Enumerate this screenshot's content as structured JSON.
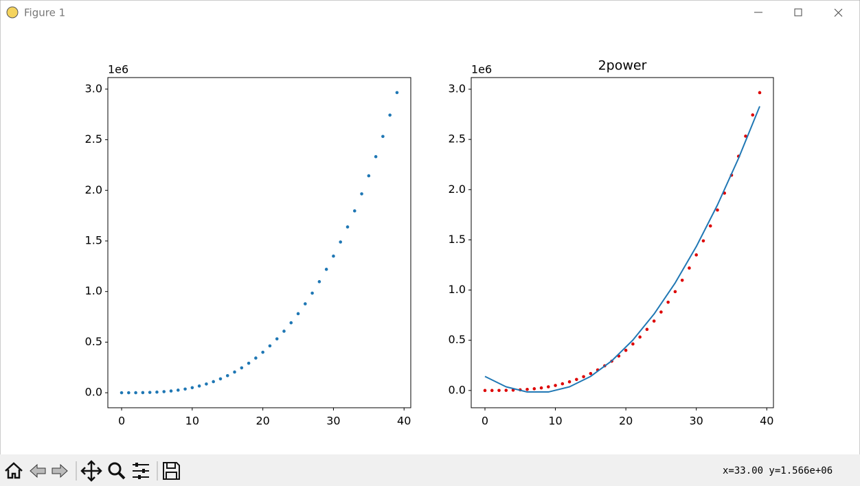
{
  "window": {
    "title": "Figure 1"
  },
  "status": "x=33.00 y=1.566e+06",
  "chart_data": [
    {
      "type": "scatter",
      "x": [
        0,
        1,
        2,
        3,
        4,
        5,
        6,
        7,
        8,
        9,
        10,
        11,
        12,
        13,
        14,
        15,
        16,
        17,
        18,
        19,
        20,
        21,
        22,
        23,
        24,
        25,
        26,
        27,
        28,
        29,
        30,
        31,
        32,
        33,
        34,
        35,
        36,
        37,
        38,
        39
      ],
      "series": [
        {
          "color": "#1f77b4",
          "style": "points",
          "x": [
            0,
            1,
            2,
            3,
            4,
            5,
            6,
            7,
            8,
            9,
            10,
            11,
            12,
            13,
            14,
            15,
            16,
            17,
            18,
            19,
            20,
            21,
            22,
            23,
            24,
            25,
            26,
            27,
            28,
            29,
            30,
            31,
            32,
            33,
            34,
            35,
            36,
            37,
            38,
            39
          ],
          "values": [
            0,
            50,
            400,
            1350,
            3200,
            6250,
            10800,
            17150,
            25600,
            36450,
            50000,
            66550,
            86400,
            109850,
            137200,
            168750,
            204800,
            245650,
            291600,
            342950,
            400000,
            463050,
            532400,
            608350,
            691200,
            781250,
            878800,
            984150,
            1097600,
            1219450,
            1350000,
            1489550,
            1638400,
            1796850,
            1965200,
            2143750,
            2332800,
            2532650,
            2743600,
            2965950
          ]
        }
      ],
      "xlim": [
        -1.95,
        40.95
      ],
      "xticks": [
        0,
        10,
        20,
        30,
        40
      ],
      "ylim": [
        -148298,
        3114248
      ],
      "yticks": [
        {
          "value": 0,
          "label": "0.0"
        },
        {
          "value": 500000,
          "label": "0.5"
        },
        {
          "value": 1000000,
          "label": "1.0"
        },
        {
          "value": 1500000,
          "label": "1.5"
        },
        {
          "value": 2000000,
          "label": "2.0"
        },
        {
          "value": 2500000,
          "label": "2.5"
        },
        {
          "value": 3000000,
          "label": "3.0"
        }
      ],
      "y_offset_label": "1e6"
    },
    {
      "type": "scatter",
      "title": "2power",
      "series": [
        {
          "color": "#dd0000",
          "style": "points",
          "x": [
            0,
            1,
            2,
            3,
            4,
            5,
            6,
            7,
            8,
            9,
            10,
            11,
            12,
            13,
            14,
            15,
            16,
            17,
            18,
            19,
            20,
            21,
            22,
            23,
            24,
            25,
            26,
            27,
            28,
            29,
            30,
            31,
            32,
            33,
            34,
            35,
            36,
            37,
            38,
            39
          ],
          "values": [
            0,
            50,
            400,
            1350,
            3200,
            6250,
            10800,
            17150,
            25600,
            36450,
            50000,
            66550,
            86400,
            109850,
            137200,
            168750,
            204800,
            245650,
            291600,
            342950,
            400000,
            463050,
            532400,
            608350,
            691200,
            781250,
            878800,
            984150,
            1097600,
            1219450,
            1350000,
            1489550,
            1638400,
            1796850,
            1965200,
            2143750,
            2332800,
            2532650,
            2743600,
            2965950
          ]
        },
        {
          "color": "#1f77b4",
          "style": "line",
          "x": [
            0,
            3,
            6,
            9,
            12,
            15,
            18,
            21,
            24,
            27,
            30,
            33,
            36,
            39
          ],
          "values": [
            140000,
            36536,
            -15196,
            -15196,
            36536,
            140000,
            295196,
            502124,
            760784,
            1071176,
            1433300,
            1847156,
            2312744,
            2830064
          ]
        }
      ],
      "xlim": [
        -1.95,
        40.95
      ],
      "xticks": [
        0,
        10,
        20,
        30,
        40
      ],
      "ylim": [
        -172000,
        3116000
      ],
      "yticks": [
        {
          "value": 0,
          "label": "0.0"
        },
        {
          "value": 500000,
          "label": "0.5"
        },
        {
          "value": 1000000,
          "label": "1.0"
        },
        {
          "value": 1500000,
          "label": "1.5"
        },
        {
          "value": 2000000,
          "label": "2.0"
        },
        {
          "value": 2500000,
          "label": "2.5"
        },
        {
          "value": 3000000,
          "label": "3.0"
        }
      ],
      "y_offset_label": "1e6"
    }
  ]
}
